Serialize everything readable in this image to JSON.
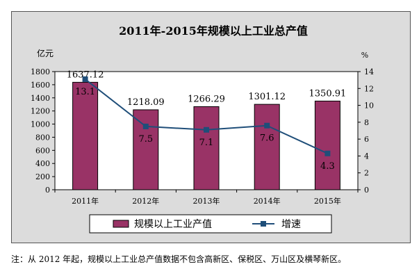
{
  "chart_data": {
    "type": "bar+line",
    "title": "2011年-2015年规模以上工业总产值",
    "categories": [
      "2011年",
      "2012年",
      "2013年",
      "2014年",
      "2015年"
    ],
    "left_axis": {
      "unit_label": "亿元",
      "ylim": [
        0,
        1800
      ],
      "ticks": [
        "0",
        "200",
        "400",
        "600",
        "800",
        "1000",
        "1200",
        "1400",
        "1600",
        "1800"
      ]
    },
    "right_axis": {
      "unit_label": "%",
      "ylim": [
        0,
        14
      ],
      "ticks": [
        "0",
        "2",
        "4",
        "6",
        "8",
        "10",
        "12",
        "14"
      ]
    },
    "series": [
      {
        "name": "规模以上工业产值",
        "kind": "bar",
        "axis": "left",
        "color": "#993366",
        "values": [
          1637.12,
          1218.09,
          1266.29,
          1301.12,
          1350.91
        ],
        "labels": [
          "1637.12",
          "1218.09",
          "1266.29",
          "1301.12",
          "1350.91"
        ]
      },
      {
        "name": "增速",
        "kind": "line",
        "axis": "right",
        "color": "#1f4e79",
        "values": [
          13.1,
          7.5,
          7.1,
          7.6,
          4.3
        ],
        "labels": [
          "13.1",
          "7.5",
          "7.1",
          "7.6",
          "4.3"
        ]
      }
    ],
    "legend_position": "bottom",
    "grid": false
  },
  "note": "注：从 2012 年起，规模以上工业总产值数据不包含高新区、保税区、万山区及横琴新区。"
}
